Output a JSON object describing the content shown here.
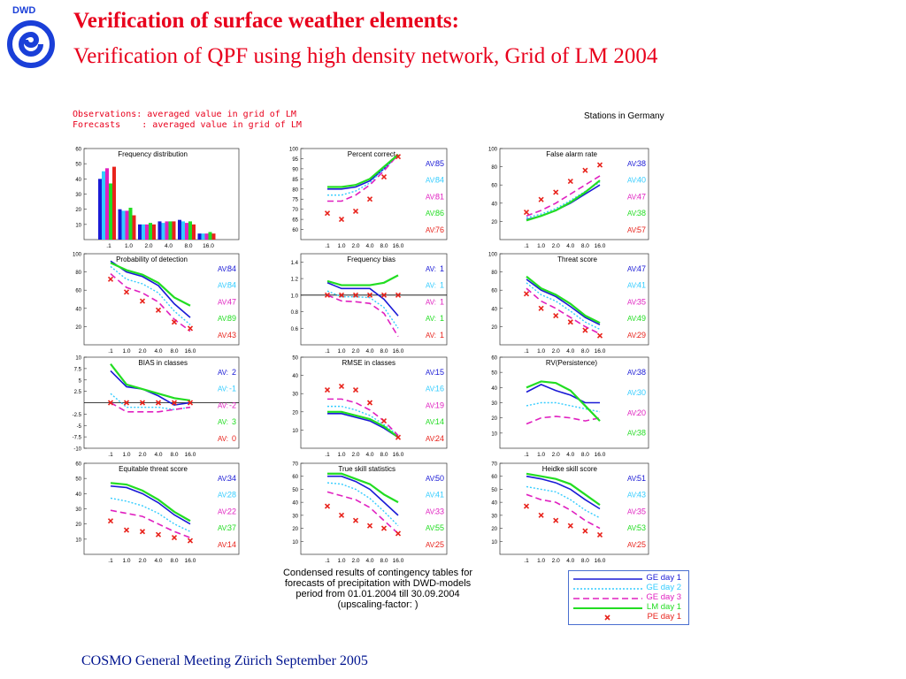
{
  "title_bold": "Verification of surface weather elements:",
  "title_sub": "Verification of QPF using high density network, Grid of  LM 2004",
  "logo_text": "DWD",
  "header_line1": "Observations: averaged value in grid of LM",
  "header_line2": "Forecasts    : averaged value in grid of LM",
  "stations_label": "Stations in Germany",
  "caption_lines": [
    "Condensed results of contingency tables for",
    "forecasts of precipitation with DWD-models",
    "period from 01.01.2004 till 30.09.2004",
    "(upscaling-factor:     )"
  ],
  "footer": "COSMO General Meeting  Zürich September 2005",
  "colors": {
    "ge1": "#1a1ad6",
    "ge2": "#33ccff",
    "ge3": "#e020c0",
    "lm1": "#22dd22",
    "pe1": "#e8231c",
    "title": "#e8001c",
    "footer": "#00148f"
  },
  "legend": [
    {
      "name": "GE day  1",
      "color": "#1a1ad6",
      "style": "solid"
    },
    {
      "name": "GE day  2",
      "color": "#33ccff",
      "style": "dotted"
    },
    {
      "name": "GE day  3",
      "color": "#e020c0",
      "style": "dashed"
    },
    {
      "name": "LM day  1",
      "color": "#22dd22",
      "style": "solid"
    },
    {
      "name": "PE day  1",
      "color": "#e8231c",
      "style": "marker"
    }
  ],
  "chart_data": [
    {
      "type": "bar",
      "title": "Frequency distribution",
      "categories": [
        ".1",
        "1.0",
        "2.0",
        "4.0",
        "8.0",
        "16.0"
      ],
      "ylim": [
        0,
        60
      ],
      "yticks": [
        10,
        20,
        30,
        40,
        50,
        60
      ],
      "series": [
        {
          "name": "GE day  1",
          "values": [
            40,
            20,
            10,
            12,
            13,
            4
          ]
        },
        {
          "name": "GE day  2",
          "values": [
            45,
            19,
            10,
            11,
            12,
            4
          ]
        },
        {
          "name": "GE day  3",
          "values": [
            47,
            19,
            10,
            12,
            11,
            4
          ]
        },
        {
          "name": "LM day  1",
          "values": [
            37,
            21,
            11,
            12,
            12,
            5
          ]
        },
        {
          "name": "PE day  1",
          "values": [
            48,
            16,
            10,
            12,
            10,
            4
          ]
        }
      ]
    },
    {
      "type": "line",
      "title": "Percent correct",
      "categories": [
        ".1",
        "1.0",
        "2.0",
        "4.0",
        "8.0",
        "16.0"
      ],
      "ylim": [
        55,
        100
      ],
      "yticks": [
        60,
        65,
        70,
        75,
        80,
        85,
        90,
        95,
        100
      ],
      "series": [
        {
          "name": "GE day  1",
          "values": [
            80,
            80,
            81,
            84,
            90,
            97
          ]
        },
        {
          "name": "GE day  2",
          "values": [
            77,
            77,
            79,
            83,
            90,
            97
          ]
        },
        {
          "name": "GE day  3",
          "values": [
            74,
            74,
            77,
            82,
            89,
            97
          ]
        },
        {
          "name": "LM day  1",
          "values": [
            81,
            81,
            82,
            85,
            91,
            97
          ]
        },
        {
          "name": "PE day  1",
          "values": [
            68,
            65,
            69,
            75,
            86,
            96
          ]
        }
      ],
      "averages": [
        "85",
        "84",
        "81",
        "86",
        "76"
      ]
    },
    {
      "type": "line",
      "title": "False alarm rate",
      "categories": [
        ".1",
        "1.0",
        "2.0",
        "4.0",
        "8.0",
        "16.0"
      ],
      "ylim": [
        0,
        100
      ],
      "yticks": [
        20,
        40,
        60,
        80,
        100
      ],
      "series": [
        {
          "name": "GE day  1",
          "values": [
            22,
            26,
            32,
            40,
            50,
            60
          ]
        },
        {
          "name": "GE day  2",
          "values": [
            24,
            28,
            34,
            43,
            53,
            63
          ]
        },
        {
          "name": "GE day  3",
          "values": [
            26,
            32,
            40,
            50,
            60,
            70
          ]
        },
        {
          "name": "LM day  1",
          "values": [
            21,
            26,
            32,
            41,
            52,
            65
          ]
        },
        {
          "name": "PE day  1",
          "values": [
            30,
            44,
            52,
            64,
            76,
            82
          ]
        }
      ],
      "averages": [
        "38",
        "40",
        "47",
        "38",
        "57"
      ]
    },
    {
      "type": "line",
      "title": "Probability of detection",
      "categories": [
        ".1",
        "1.0",
        "2.0",
        "4.0",
        "8.0",
        "16.0"
      ],
      "ylim": [
        0,
        100
      ],
      "yticks": [
        20,
        40,
        60,
        80,
        100
      ],
      "series": [
        {
          "name": "GE day  1",
          "values": [
            92,
            80,
            75,
            65,
            45,
            30
          ]
        },
        {
          "name": "GE day  2",
          "values": [
            86,
            72,
            67,
            57,
            37,
            22
          ]
        },
        {
          "name": "GE day  3",
          "values": [
            78,
            63,
            57,
            47,
            28,
            15
          ]
        },
        {
          "name": "LM day  1",
          "values": [
            90,
            82,
            77,
            68,
            52,
            43
          ]
        },
        {
          "name": "PE day  1",
          "values": [
            72,
            58,
            48,
            38,
            25,
            18
          ]
        }
      ],
      "averages": [
        "84",
        "84",
        "47",
        "89",
        "43"
      ]
    },
    {
      "type": "line",
      "title": "Frequency bias",
      "categories": [
        ".1",
        "1.0",
        "2.0",
        "4.0",
        "8.0",
        "16.0"
      ],
      "ylim": [
        0.4,
        1.5
      ],
      "yticks": [
        0.6,
        0.8,
        1.0,
        1.2,
        1.4
      ],
      "reference": 1.0,
      "series": [
        {
          "name": "GE day  1",
          "values": [
            1.15,
            1.08,
            1.08,
            1.08,
            0.95,
            0.75
          ]
        },
        {
          "name": "GE day  2",
          "values": [
            1.05,
            0.98,
            0.98,
            0.97,
            0.85,
            0.6
          ]
        },
        {
          "name": "GE day  3",
          "values": [
            1.0,
            0.93,
            0.92,
            0.9,
            0.78,
            0.5
          ]
        },
        {
          "name": "LM day  1",
          "values": [
            1.17,
            1.12,
            1.12,
            1.12,
            1.15,
            1.24
          ]
        },
        {
          "name": "PE day  1",
          "values": [
            1.0,
            1.0,
            1.0,
            1.0,
            1.0,
            1.0
          ]
        }
      ],
      "averages": [
        "1",
        "1",
        "1",
        "1",
        "1"
      ]
    },
    {
      "type": "line",
      "title": "Threat score",
      "categories": [
        ".1",
        "1.0",
        "2.0",
        "4.0",
        "8.0",
        "16.0"
      ],
      "ylim": [
        0,
        100
      ],
      "yticks": [
        20,
        40,
        60,
        80,
        100
      ],
      "series": [
        {
          "name": "GE day  1",
          "values": [
            72,
            60,
            53,
            42,
            30,
            22
          ]
        },
        {
          "name": "GE day  2",
          "values": [
            68,
            55,
            48,
            37,
            25,
            17
          ]
        },
        {
          "name": "GE day  3",
          "values": [
            62,
            48,
            40,
            30,
            20,
            12
          ]
        },
        {
          "name": "LM day  1",
          "values": [
            75,
            62,
            55,
            45,
            32,
            24
          ]
        },
        {
          "name": "PE day  1",
          "values": [
            56,
            40,
            32,
            25,
            16,
            10
          ]
        }
      ],
      "averages": [
        "47",
        "41",
        "35",
        "49",
        "29"
      ]
    },
    {
      "type": "line",
      "title": "BIAS in classes",
      "categories": [
        ".1",
        "1.0",
        "2.0",
        "4.0",
        "8.0",
        "16.0"
      ],
      "ylim": [
        -10,
        10
      ],
      "yticks": [
        -10.0,
        -7.5,
        -5.0,
        -2.5,
        2.5,
        5.0,
        7.5,
        10.0
      ],
      "reference": 0,
      "series": [
        {
          "name": "GE day  1",
          "values": [
            7,
            3.5,
            3,
            1.5,
            -0.5,
            0
          ]
        },
        {
          "name": "GE day  2",
          "values": [
            2,
            -1,
            -1,
            -1,
            -1.5,
            -1
          ]
        },
        {
          "name": "GE day  3",
          "values": [
            0,
            -2,
            -2,
            -2,
            -1.5,
            -1
          ]
        },
        {
          "name": "LM day  1",
          "values": [
            8.5,
            4,
            3,
            2,
            1,
            0.5
          ]
        },
        {
          "name": "PE day  1",
          "values": [
            0,
            0,
            0,
            0,
            0,
            0
          ]
        }
      ],
      "averages": [
        "2",
        "-1",
        "-2",
        "3",
        "0"
      ]
    },
    {
      "type": "line",
      "title": "RMSE in classes",
      "categories": [
        ".1",
        "1.0",
        "2.0",
        "4.0",
        "8.0",
        "16.0"
      ],
      "ylim": [
        0,
        50
      ],
      "yticks": [
        10,
        20,
        30,
        40,
        50
      ],
      "series": [
        {
          "name": "GE day  1",
          "values": [
            19,
            19,
            17,
            15,
            11,
            6
          ]
        },
        {
          "name": "GE day  2",
          "values": [
            23,
            23,
            21,
            18,
            13,
            7
          ]
        },
        {
          "name": "GE day  3",
          "values": [
            27,
            27,
            25,
            21,
            15,
            7
          ]
        },
        {
          "name": "LM day  1",
          "values": [
            20,
            20,
            18,
            16,
            12,
            6
          ]
        },
        {
          "name": "PE day  1",
          "values": [
            32,
            34,
            32,
            25,
            15,
            6
          ]
        }
      ],
      "averages": [
        "15",
        "16",
        "19",
        "14",
        "24"
      ]
    },
    {
      "type": "line",
      "title": "RV(Persistence)",
      "categories": [
        ".1",
        "1.0",
        "2.0",
        "4.0",
        "8.0",
        "16.0"
      ],
      "ylim": [
        0,
        60
      ],
      "yticks": [
        10,
        20,
        30,
        40,
        50,
        60
      ],
      "series": [
        {
          "name": "GE day  1",
          "values": [
            37,
            42,
            38,
            35,
            30,
            30
          ]
        },
        {
          "name": "GE day  2",
          "values": [
            28,
            30,
            30,
            28,
            26,
            24
          ]
        },
        {
          "name": "GE day  3",
          "values": [
            16,
            20,
            21,
            20,
            18,
            20
          ]
        },
        {
          "name": "LM day  1",
          "values": [
            40,
            44,
            43,
            38,
            28,
            18
          ]
        }
      ],
      "averages": [
        "38",
        "30",
        "20",
        "38"
      ]
    },
    {
      "type": "line",
      "title": "Equitable threat score",
      "categories": [
        ".1",
        "1.0",
        "2.0",
        "4.0",
        "8.0",
        "16.0"
      ],
      "ylim": [
        0,
        60
      ],
      "yticks": [
        10,
        20,
        30,
        40,
        50,
        60
      ],
      "series": [
        {
          "name": "GE day  1",
          "values": [
            45,
            44,
            40,
            34,
            26,
            20
          ]
        },
        {
          "name": "GE day  2",
          "values": [
            37,
            35,
            32,
            27,
            20,
            15
          ]
        },
        {
          "name": "GE day  3",
          "values": [
            29,
            27,
            25,
            20,
            15,
            11
          ]
        },
        {
          "name": "LM day  1",
          "values": [
            47,
            46,
            42,
            36,
            28,
            22
          ]
        },
        {
          "name": "PE day  1",
          "values": [
            22,
            16,
            15,
            13,
            11,
            9
          ]
        }
      ],
      "averages": [
        "34",
        "28",
        "22",
        "37",
        "14"
      ]
    },
    {
      "type": "line",
      "title": "True skill statistics",
      "categories": [
        ".1",
        "1.0",
        "2.0",
        "4.0",
        "8.0",
        "16.0"
      ],
      "ylim": [
        0,
        70
      ],
      "yticks": [
        10,
        20,
        30,
        40,
        50,
        60,
        70
      ],
      "series": [
        {
          "name": "GE day  1",
          "values": [
            60,
            60,
            56,
            50,
            40,
            30
          ]
        },
        {
          "name": "GE day  2",
          "values": [
            55,
            54,
            50,
            43,
            33,
            22
          ]
        },
        {
          "name": "GE day  3",
          "values": [
            48,
            45,
            42,
            36,
            26,
            16
          ]
        },
        {
          "name": "LM day  1",
          "values": [
            62,
            62,
            58,
            54,
            46,
            40
          ]
        },
        {
          "name": "PE day  1",
          "values": [
            37,
            30,
            26,
            22,
            20,
            16
          ]
        }
      ],
      "averages": [
        "50",
        "41",
        "33",
        "55",
        "25"
      ]
    },
    {
      "type": "line",
      "title": "Heidke skill score",
      "categories": [
        ".1",
        "1.0",
        "2.0",
        "4.0",
        "8.0",
        "16.0"
      ],
      "ylim": [
        0,
        70
      ],
      "yticks": [
        10,
        20,
        30,
        40,
        50,
        60,
        70
      ],
      "series": [
        {
          "name": "GE day  1",
          "values": [
            60,
            58,
            55,
            50,
            42,
            35
          ]
        },
        {
          "name": "GE day  2",
          "values": [
            52,
            50,
            48,
            42,
            34,
            28
          ]
        },
        {
          "name": "GE day  3",
          "values": [
            46,
            42,
            40,
            34,
            26,
            20
          ]
        },
        {
          "name": "LM day  1",
          "values": [
            62,
            60,
            58,
            54,
            46,
            38
          ]
        },
        {
          "name": "PE day  1",
          "values": [
            37,
            30,
            26,
            22,
            18,
            15
          ]
        }
      ],
      "averages": [
        "51",
        "43",
        "35",
        "53",
        "25"
      ]
    }
  ]
}
